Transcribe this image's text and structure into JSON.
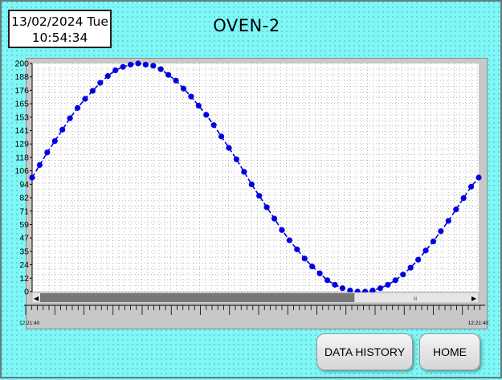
{
  "header": {
    "date": "13/02/2024 Tue",
    "time": "10:54:34",
    "title": "OVEN-2"
  },
  "buttons": {
    "data_history": "DATA HISTORY",
    "home": "HOME"
  },
  "chart_data": {
    "type": "line",
    "title": "",
    "xlabel": "",
    "ylabel": "",
    "ylim": [
      0,
      200
    ],
    "y_ticks": [
      "200",
      "188",
      "176",
      "165",
      "153",
      "141",
      "129",
      "118",
      "106",
      "94",
      "82",
      "71",
      "59",
      "47",
      "35",
      "24",
      "12",
      "0"
    ],
    "x_tick_labels": [
      "12:21:40",
      "12:21:40"
    ],
    "grid": true,
    "series": [
      {
        "color": "#0000e0",
        "line_style": "dashed",
        "marker": "circle",
        "values": [
          100,
          111,
          122,
          132,
          142,
          152,
          161,
          169,
          176,
          183,
          189,
          194,
          197,
          199,
          200,
          199,
          198,
          195,
          190,
          185,
          178,
          171,
          163,
          155,
          146,
          136,
          126,
          116,
          105,
          94,
          84,
          74,
          64,
          54,
          45,
          37,
          29,
          22,
          16,
          10,
          6,
          3,
          1,
          0,
          0,
          1,
          3,
          6,
          10,
          15,
          21,
          28,
          36,
          44,
          53,
          62,
          72,
          82,
          92,
          100
        ]
      }
    ]
  },
  "scrollbar": {
    "left_arrow": "◀",
    "right_arrow": "▶",
    "grip": "III",
    "position": 0.73
  }
}
